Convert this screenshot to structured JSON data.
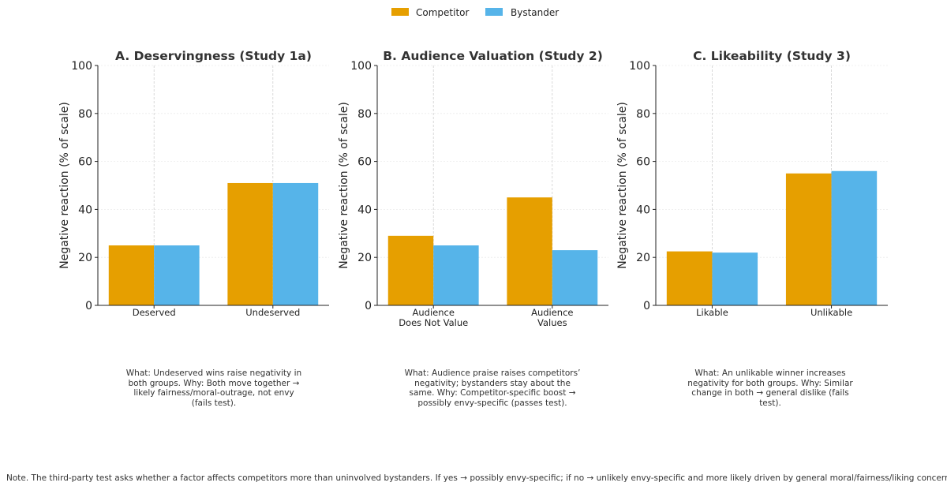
{
  "legend": {
    "items": [
      {
        "label": "Competitor",
        "color": "#E69F00"
      },
      {
        "label": "Bystander",
        "color": "#56B4E9"
      }
    ],
    "placement": "top-center"
  },
  "captions": [
    "What: Undeserved wins raise negativity in both groups. Why: Both move together → likely fairness/moral-outrage, not envy (fails test).",
    "What: Audience praise raises competitors’ negativity; bystanders stay about the same. Why: Competitor-specific boost → possibly envy-specific (passes test).",
    "What: An unlikable winner increases negativity for both groups. Why: Similar change in both → general dislike (fails test)."
  ],
  "note": "Note. The third-party test asks whether a factor affects competitors more than uninvolved bystanders. If yes → possibly envy-specific; if no → unlikely envy-specific and more likely driven by general moral/fairness/liking concerns.",
  "chart_data": [
    {
      "type": "bar",
      "title": "A. Deservingness (Study 1a)",
      "ylabel": "Negative reaction (% of scale)",
      "xlabel": "",
      "ylim": [
        0,
        100
      ],
      "yticks": [
        0,
        20,
        40,
        60,
        80,
        100
      ],
      "categories": [
        [
          "Deserved"
        ],
        [
          "Undeserved"
        ]
      ],
      "series": [
        {
          "name": "Competitor",
          "color": "#E69F00",
          "values": [
            25,
            51
          ]
        },
        {
          "name": "Bystander",
          "color": "#56B4E9",
          "values": [
            25,
            51
          ]
        }
      ],
      "grid": true
    },
    {
      "type": "bar",
      "title": "B. Audience Valuation (Study 2)",
      "ylabel": "Negative reaction (% of scale)",
      "xlabel": "",
      "ylim": [
        0,
        100
      ],
      "yticks": [
        0,
        20,
        40,
        60,
        80,
        100
      ],
      "categories": [
        [
          "Audience",
          "Does Not Value"
        ],
        [
          "Audience",
          "Values"
        ]
      ],
      "series": [
        {
          "name": "Competitor",
          "color": "#E69F00",
          "values": [
            29,
            45
          ]
        },
        {
          "name": "Bystander",
          "color": "#56B4E9",
          "values": [
            25,
            23
          ]
        }
      ],
      "grid": true
    },
    {
      "type": "bar",
      "title": "C. Likeability (Study 3)",
      "ylabel": "Negative reaction (% of scale)",
      "xlabel": "",
      "ylim": [
        0,
        100
      ],
      "yticks": [
        0,
        20,
        40,
        60,
        80,
        100
      ],
      "categories": [
        [
          "Likable"
        ],
        [
          "Unlikable"
        ]
      ],
      "series": [
        {
          "name": "Competitor",
          "color": "#E69F00",
          "values": [
            22.5,
            55
          ]
        },
        {
          "name": "Bystander",
          "color": "#56B4E9",
          "values": [
            22,
            56
          ]
        }
      ],
      "grid": true
    }
  ]
}
